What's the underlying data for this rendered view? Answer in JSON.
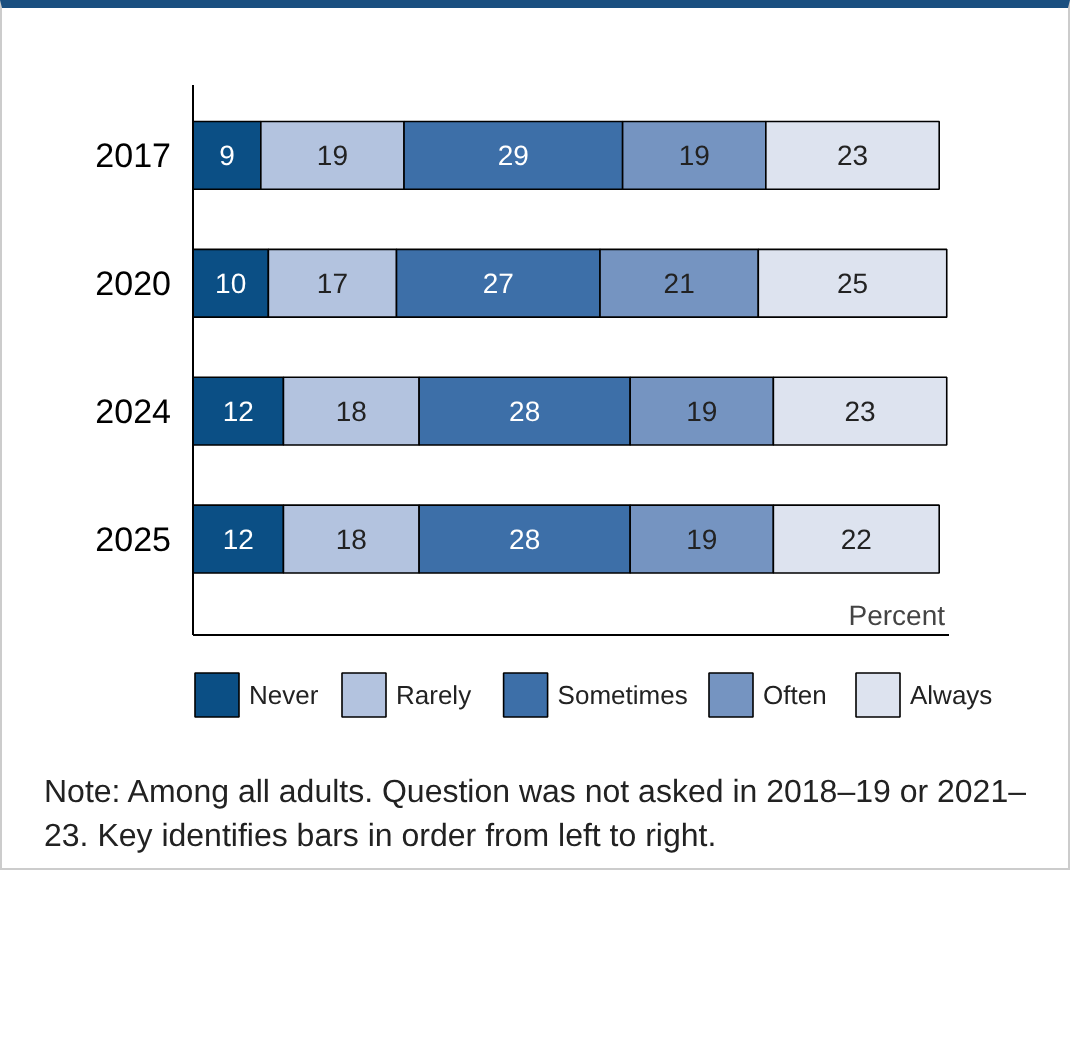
{
  "chart_data": {
    "type": "bar",
    "orientation": "horizontal",
    "stacked": true,
    "data_labels": true,
    "legend": "bottom",
    "grid": false,
    "xlabel": "Percent",
    "categories": [
      "2017",
      "2020",
      "2024",
      "2025"
    ],
    "series": [
      {
        "name": "Never",
        "color": "#0b4f85",
        "values": [
          9,
          10,
          12,
          12
        ]
      },
      {
        "name": "Rarely",
        "color": "#b3c3df",
        "values": [
          19,
          17,
          18,
          18
        ]
      },
      {
        "name": "Sometimes",
        "color": "#3d6fa8",
        "values": [
          29,
          27,
          28,
          28
        ]
      },
      {
        "name": "Often",
        "color": "#7594c1",
        "values": [
          19,
          21,
          19,
          19
        ]
      },
      {
        "name": "Always",
        "color": "#dde3ef",
        "values": [
          23,
          25,
          23,
          22
        ]
      }
    ],
    "annotations": [
      "Note: Among all adults. Question was not asked in 2018–19 or 2021–23. Key identifies bars in order from left to right."
    ]
  }
}
